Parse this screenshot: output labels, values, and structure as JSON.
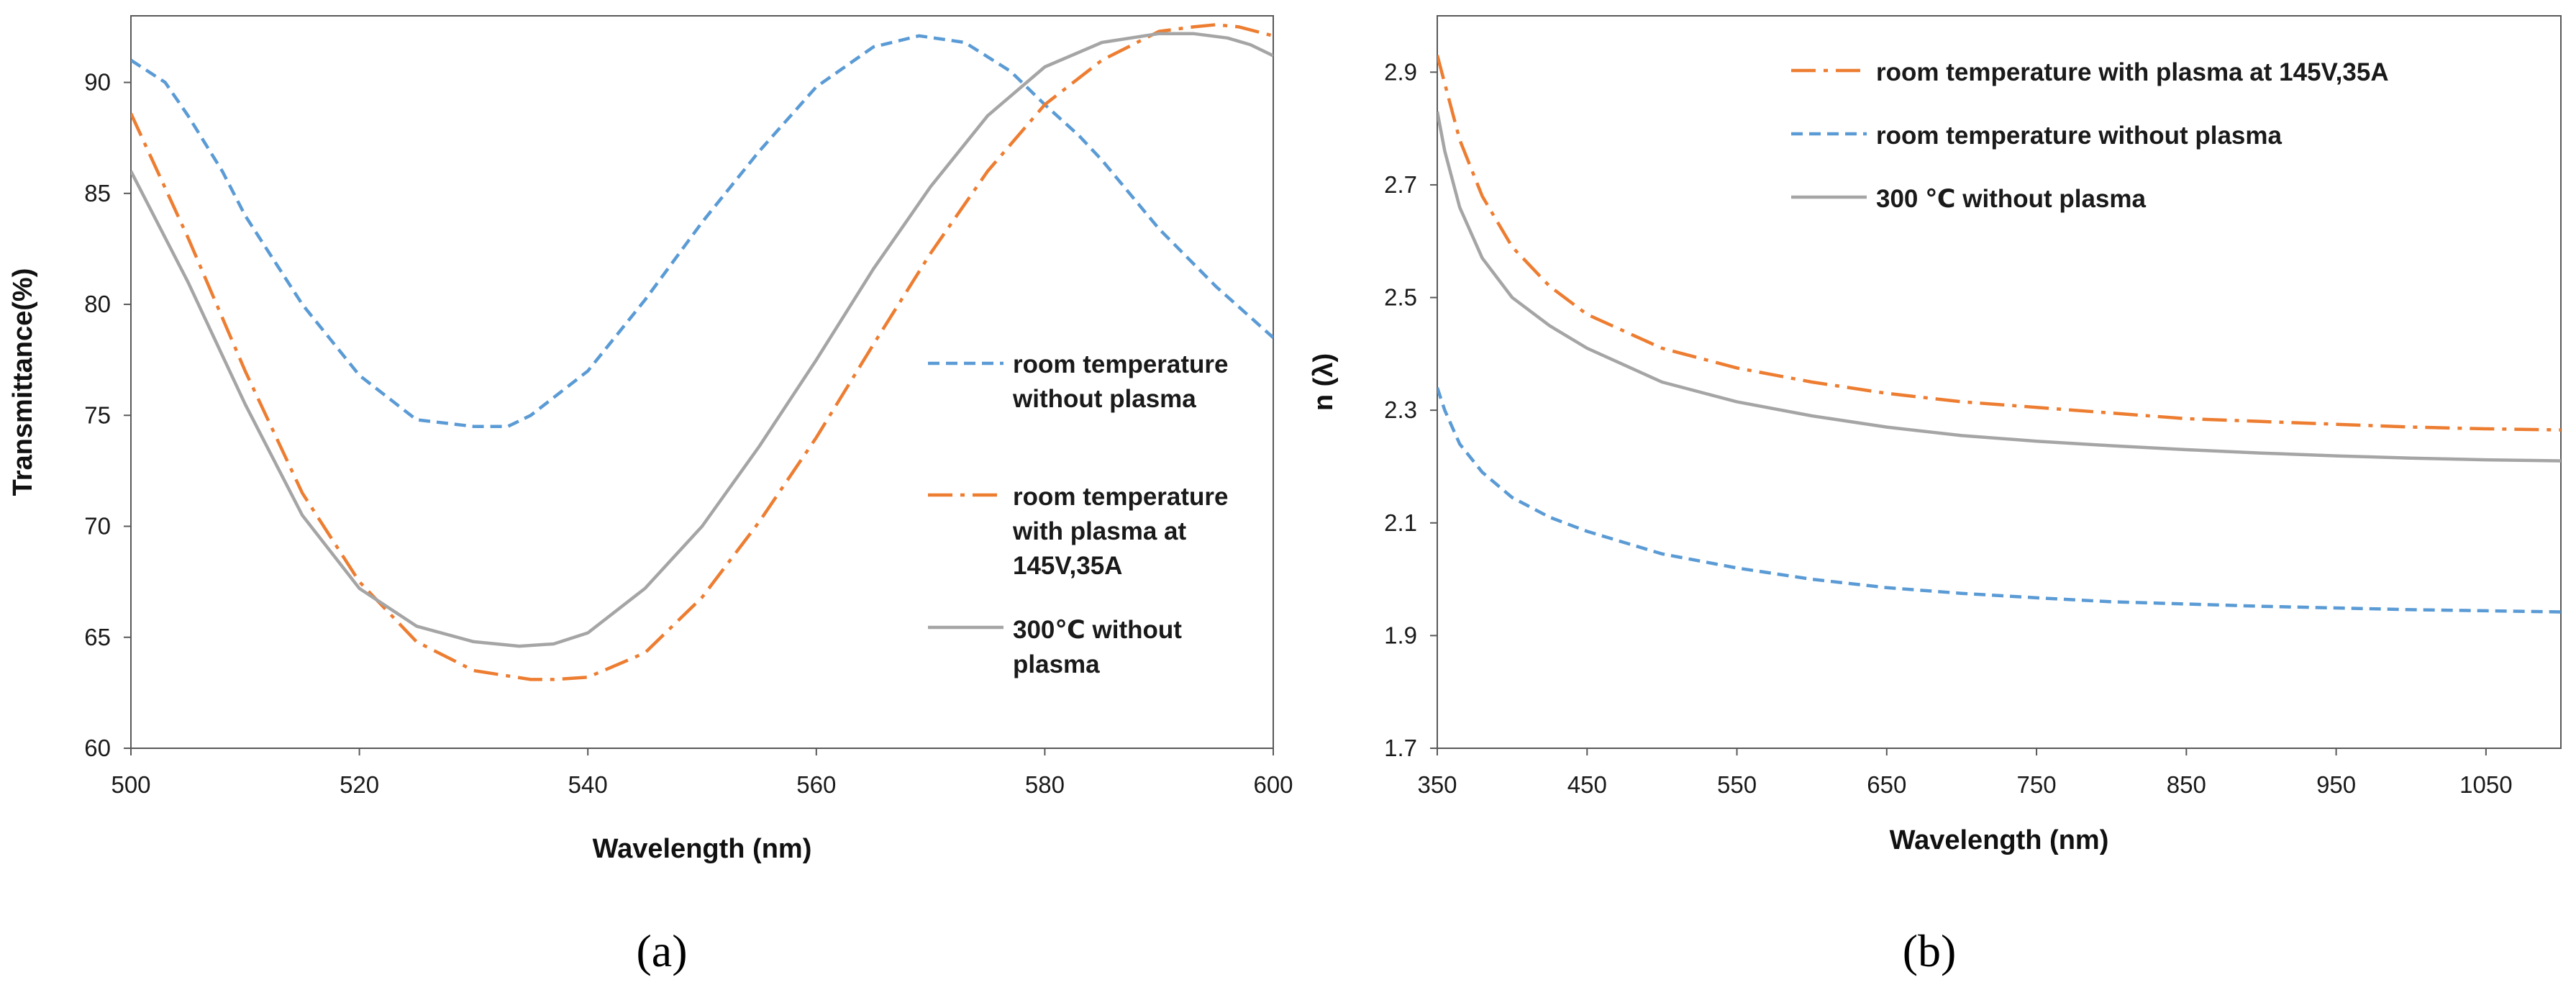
{
  "colors": {
    "blue": "#5b9bd5",
    "orange": "#ed7d31",
    "gray": "#a5a5a5"
  },
  "panels": {
    "a_label": "(a)",
    "b_label": "(b)"
  },
  "chart_data": [
    {
      "id": "a",
      "type": "line",
      "xlabel": "Wavelength (nm)",
      "ylabel": "Transmittance(%)",
      "xlim": [
        500,
        600
      ],
      "ylim": [
        60,
        93
      ],
      "xticks": [
        500,
        520,
        540,
        560,
        580,
        600
      ],
      "yticks": [
        60,
        65,
        70,
        75,
        80,
        85,
        90
      ],
      "legend_position": "right",
      "series": [
        {
          "name": "room temperature without plasma",
          "legend_lines": [
            "room temperature",
            "without plasma"
          ],
          "color": "#5b9bd5",
          "dash": "dashed",
          "x": [
            500,
            503,
            505,
            508,
            510,
            515,
            520,
            525,
            530,
            533,
            535,
            540,
            545,
            550,
            555,
            560,
            565,
            569,
            573,
            577,
            580,
            583,
            585,
            590,
            595,
            600
          ],
          "y": [
            91,
            90,
            88.5,
            86,
            84,
            80,
            76.8,
            74.8,
            74.5,
            74.5,
            75,
            77,
            80.2,
            83.7,
            86.9,
            89.8,
            91.6,
            92.1,
            91.8,
            90.5,
            89,
            87.6,
            86.5,
            83.4,
            80.8,
            78.5
          ]
        },
        {
          "name": "room temperature with plasma at 145V,35A",
          "legend_lines": [
            "room temperature",
            "with plasma at",
            "145V,35A"
          ],
          "color": "#ed7d31",
          "dash": "dashdot",
          "x": [
            500,
            505,
            510,
            515,
            520,
            525,
            530,
            535,
            537,
            540,
            545,
            550,
            555,
            560,
            565,
            570,
            575,
            580,
            585,
            590,
            593,
            595,
            597,
            600
          ],
          "y": [
            88.6,
            83,
            77,
            71.5,
            67.5,
            64.8,
            63.5,
            63.1,
            63.1,
            63.2,
            64.3,
            66.8,
            70.2,
            74,
            78.2,
            82.3,
            86,
            89,
            91,
            92.3,
            92.5,
            92.6,
            92.5,
            92.1
          ]
        },
        {
          "name": "300℃ without plasma",
          "legend_lines": [
            "300℃ without",
            "plasma"
          ],
          "color": "#a5a5a5",
          "dash": "solid",
          "x": [
            500,
            505,
            510,
            515,
            520,
            525,
            530,
            534,
            537,
            540,
            545,
            550,
            555,
            560,
            565,
            570,
            575,
            580,
            585,
            590,
            593,
            596,
            598,
            600
          ],
          "y": [
            86,
            81,
            75.5,
            70.5,
            67.2,
            65.5,
            64.8,
            64.6,
            64.7,
            65.2,
            67.2,
            70,
            73.6,
            77.5,
            81.6,
            85.3,
            88.5,
            90.7,
            91.8,
            92.2,
            92.2,
            92,
            91.7,
            91.2
          ]
        }
      ]
    },
    {
      "id": "b",
      "type": "line",
      "xlabel": "Wavelength (nm)",
      "ylabel": "n (λ)",
      "xlim": [
        350,
        1100
      ],
      "ylim": [
        1.7,
        3.0
      ],
      "xticks": [
        350,
        450,
        550,
        650,
        750,
        850,
        950,
        1050
      ],
      "yticks": [
        1.7,
        1.9,
        2.1,
        2.3,
        2.5,
        2.7,
        2.9
      ],
      "legend_position": "top-left",
      "series": [
        {
          "name": "room temperature with plasma at 145V,35A",
          "color": "#ed7d31",
          "dash": "dashdot",
          "x": [
            350,
            355,
            365,
            380,
            400,
            425,
            450,
            500,
            550,
            600,
            650,
            700,
            750,
            800,
            850,
            900,
            950,
            1000,
            1050,
            1100
          ],
          "y": [
            2.93,
            2.88,
            2.78,
            2.68,
            2.59,
            2.52,
            2.47,
            2.41,
            2.375,
            2.35,
            2.33,
            2.315,
            2.305,
            2.295,
            2.285,
            2.28,
            2.275,
            2.27,
            2.267,
            2.265
          ]
        },
        {
          "name": "room temperature  without plasma",
          "color": "#5b9bd5",
          "dash": "dashed",
          "x": [
            350,
            355,
            365,
            380,
            400,
            425,
            450,
            500,
            550,
            600,
            650,
            700,
            750,
            800,
            850,
            900,
            950,
            1000,
            1050,
            1100
          ],
          "y": [
            2.34,
            2.3,
            2.24,
            2.19,
            2.145,
            2.11,
            2.085,
            2.045,
            2.02,
            2.0,
            1.985,
            1.975,
            1.967,
            1.96,
            1.956,
            1.952,
            1.949,
            1.946,
            1.944,
            1.942
          ]
        },
        {
          "name": "300 ℃ without plasma",
          "color": "#a5a5a5",
          "dash": "solid",
          "x": [
            350,
            355,
            365,
            380,
            400,
            425,
            450,
            500,
            550,
            600,
            650,
            700,
            750,
            800,
            850,
            900,
            950,
            1000,
            1050,
            1100
          ],
          "y": [
            2.83,
            2.76,
            2.66,
            2.57,
            2.5,
            2.45,
            2.41,
            2.35,
            2.315,
            2.29,
            2.27,
            2.255,
            2.245,
            2.237,
            2.23,
            2.224,
            2.219,
            2.215,
            2.212,
            2.21
          ]
        }
      ]
    }
  ]
}
